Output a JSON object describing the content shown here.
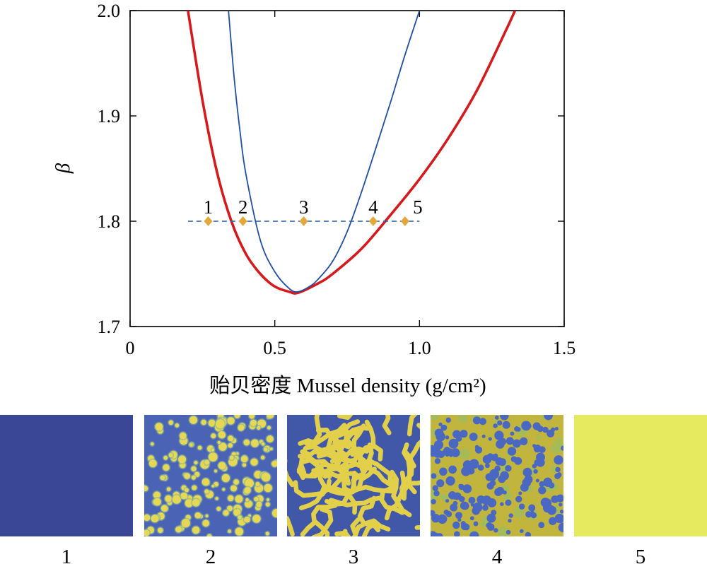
{
  "chart_data": {
    "type": "line",
    "xlabel": "贻贝密度 Mussel density (g/cm²)",
    "ylabel": "β",
    "xlim": [
      0,
      1.5
    ],
    "ylim": [
      1.7,
      2.0
    ],
    "x_ticks": [
      "0",
      "0.5",
      "1.0",
      "1.5"
    ],
    "y_ticks": [
      "1.7",
      "1.8",
      "1.9",
      "2.0"
    ],
    "grid": false,
    "series": [
      {
        "color": "#d7191c",
        "x": [
          0.2,
          0.25,
          0.3,
          0.35,
          0.4,
          0.45,
          0.5,
          0.55,
          0.58,
          0.65,
          0.7,
          0.8,
          0.9,
          1.0,
          1.1,
          1.2,
          1.3,
          1.33
        ],
        "y": [
          2.0,
          1.915,
          1.847,
          1.8,
          1.769,
          1.75,
          1.738,
          1.733,
          1.732,
          1.741,
          1.75,
          1.774,
          1.806,
          1.84,
          1.879,
          1.925,
          1.982,
          2.0
        ]
      },
      {
        "color": "#1f4fa8",
        "x": [
          0.34,
          0.36,
          0.38,
          0.4,
          0.45,
          0.5,
          0.55,
          0.58,
          0.62,
          0.65,
          0.7,
          0.75,
          0.8,
          0.85,
          0.9,
          0.95,
          1.0
        ],
        "y": [
          2.0,
          1.935,
          1.885,
          1.845,
          1.782,
          1.752,
          1.736,
          1.733,
          1.738,
          1.745,
          1.762,
          1.79,
          1.828,
          1.87,
          1.913,
          1.958,
          2.0
        ]
      },
      {
        "style": "dashed",
        "color": "#2b5fae",
        "x": [
          0.2,
          1.0
        ],
        "y": [
          1.8,
          1.8
        ]
      }
    ],
    "points": [
      {
        "label": "1",
        "x": 0.27,
        "y": 1.8
      },
      {
        "label": "2",
        "x": 0.39,
        "y": 1.8
      },
      {
        "label": "3",
        "x": 0.6,
        "y": 1.8
      },
      {
        "label": "4",
        "x": 0.84,
        "y": 1.8
      },
      {
        "label": "5",
        "x": 0.95,
        "y": 1.8
      }
    ],
    "marker_color": "#e3a83b"
  },
  "panels": [
    {
      "label": "1",
      "pattern": "uniform-low",
      "base": "#3a4796"
    },
    {
      "label": "2",
      "pattern": "spots",
      "base": "#4a63b5",
      "spot": "#e6d755"
    },
    {
      "label": "3",
      "pattern": "labyrinth",
      "base": "#4158a8",
      "spot": "#e3d04a"
    },
    {
      "label": "4",
      "pattern": "gaps",
      "base": "#c2b53e",
      "spot": "#4a67c2"
    },
    {
      "label": "5",
      "pattern": "uniform-high",
      "base": "#e6ea5f"
    }
  ]
}
